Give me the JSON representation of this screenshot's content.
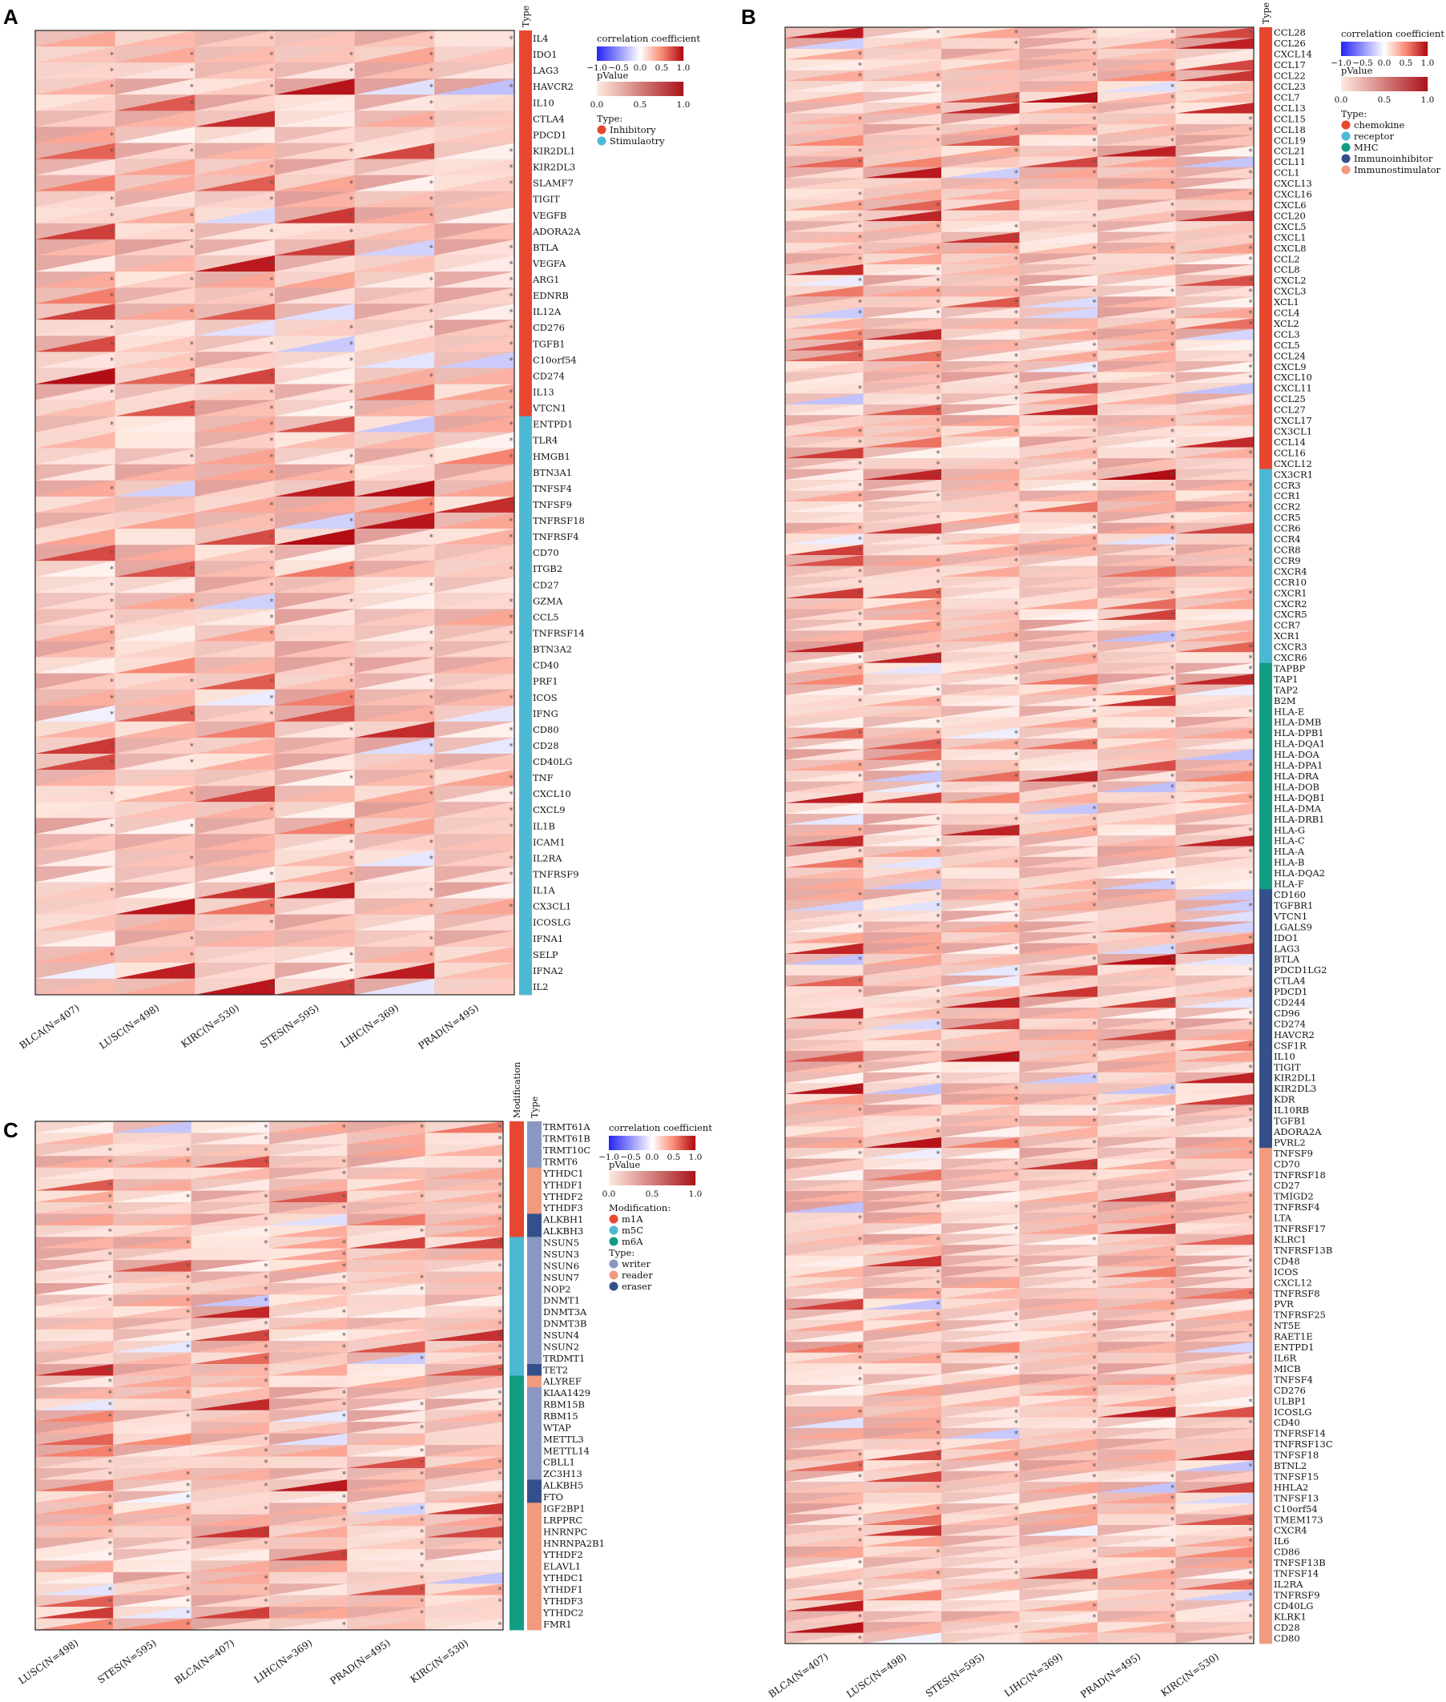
{
  "chart_data": [
    {
      "type": "heatmap",
      "panel": "A",
      "cohorts": [
        "BLCA(N=407)",
        "LUSC(N=498)",
        "KIRC(N=530)",
        "STES(N=595)",
        "LIHC(N=369)",
        "PRAD(N=495)"
      ],
      "genes": [
        "IL4",
        "IDO1",
        "LAG3",
        "HAVCR2",
        "IL10",
        "CTLA4",
        "PDCD1",
        "KIR2DL1",
        "KIR2DL3",
        "SLAMF7",
        "TIGIT",
        "VEGFB",
        "ADORA2A",
        "BTLA",
        "VEGFA",
        "ARG1",
        "EDNRB",
        "IL12A",
        "CD276",
        "TGFB1",
        "C10orf54",
        "CD274",
        "IL13",
        "VTCN1",
        "ENTPD1",
        "TLR4",
        "HMGB1",
        "BTN3A1",
        "TNFSF4",
        "TNFSF9",
        "TNFRSF18",
        "TNFRSF4",
        "CD70",
        "ITGB2",
        "CD27",
        "GZMA",
        "CCL5",
        "TNFRSF14",
        "BTN3A2",
        "CD40",
        "PRF1",
        "ICOS",
        "IFNG",
        "CD80",
        "CD28",
        "CD40LG",
        "TNF",
        "CXCL10",
        "CXCL9",
        "IL1B",
        "ICAM1",
        "IL2RA",
        "TNFRSF9",
        "IL1A",
        "CX3CL1",
        "ICOSLG",
        "IFNA1",
        "SELP",
        "IFNA2",
        "IL2"
      ],
      "type_track_title": "Type",
      "type_groups": [
        {
          "label": "Inhibitory",
          "color": "#e8472f",
          "count": 24
        },
        {
          "label": "Stimulaotry",
          "color": "#4db8d4",
          "count": 36
        }
      ],
      "legend": {
        "cor_title": "correlation coefficient",
        "cor_ticks": [
          "−1.0",
          "−0.5",
          "0.0",
          "0.5",
          "1.0"
        ],
        "p_title": "pValue",
        "p_ticks": [
          "0.0",
          "0.5",
          "1.0"
        ],
        "type_title": "Type:"
      },
      "annotation_symbol": "*"
    },
    {
      "type": "heatmap",
      "panel": "B",
      "cohorts": [
        "BLCA(N=407)",
        "LUSC(N=498)",
        "STES(N=595)",
        "LIHC(N=369)",
        "PRAD(N=495)",
        "KIRC(N=530)"
      ],
      "genes": [
        "CCL28",
        "CCL26",
        "CXCL14",
        "CCL17",
        "CCL22",
        "CCL23",
        "CCL7",
        "CCL13",
        "CCL15",
        "CCL18",
        "CCL19",
        "CCL21",
        "CCL11",
        "CCL1",
        "CXCL13",
        "CXCL16",
        "CXCL6",
        "CCL20",
        "CXCL5",
        "CXCL1",
        "CXCL8",
        "CCL2",
        "CCL8",
        "CXCL2",
        "CXCL3",
        "XCL1",
        "CCL4",
        "XCL2",
        "CCL3",
        "CCL5",
        "CCL24",
        "CXCL9",
        "CXCL10",
        "CXCL11",
        "CCL25",
        "CCL27",
        "CXCL17",
        "CX3CL1",
        "CCL14",
        "CCL16",
        "CXCL12",
        "CX3CR1",
        "CCR3",
        "CCR1",
        "CCR2",
        "CCR5",
        "CCR6",
        "CCR4",
        "CCR8",
        "CCR9",
        "CXCR4",
        "CCR10",
        "CXCR1",
        "CXCR2",
        "CXCR5",
        "CCR7",
        "XCR1",
        "CXCR3",
        "CXCR6",
        "TAPBP",
        "TAP1",
        "TAP2",
        "B2M",
        "HLA-E",
        "HLA-DMB",
        "HLA-DPB1",
        "HLA-DQA1",
        "HLA-DOA",
        "HLA-DPA1",
        "HLA-DRA",
        "HLA-DOB",
        "HLA-DQB1",
        "HLA-DMA",
        "HLA-DRB1",
        "HLA-G",
        "HLA-C",
        "HLA-A",
        "HLA-B",
        "HLA-DQA2",
        "HLA-F",
        "CD160",
        "TGFBR1",
        "VTCN1",
        "LGALS9",
        "IDO1",
        "LAG3",
        "BTLA",
        "PDCD1LG2",
        "CTLA4",
        "PDCD1",
        "CD244",
        "CD96",
        "CD274",
        "HAVCR2",
        "CSF1R",
        "IL10",
        "TIGIT",
        "KIR2DL1",
        "KIR2DL3",
        "KDR",
        "IL10RB",
        "TGFB1",
        "ADORA2A",
        "PVRL2",
        "TNFSF9",
        "CD70",
        "TNFRSF18",
        "CD27",
        "TMIGD2",
        "TNFRSF4",
        "LTA",
        "TNFRSF17",
        "KLRC1",
        "TNFRSF13B",
        "CD48",
        "ICOS",
        "CXCL12",
        "TNFRSF8",
        "PVR",
        "TNFRSF25",
        "NT5E",
        "RAET1E",
        "ENTPD1",
        "IL6R",
        "MICB",
        "TNFSF4",
        "CD276",
        "ULBP1",
        "ICOSLG",
        "CD40",
        "TNFRSF14",
        "TNFRSF13C",
        "TNFSF18",
        "BTNL2",
        "TNFSF15",
        "HHLA2",
        "TNFSF13",
        "C10orf54",
        "TMEM173",
        "CXCR4",
        "IL6",
        "CD86",
        "TNFSF13B",
        "TNFSF14",
        "IL2RA",
        "TNFRSF9",
        "CD40LG",
        "KLRK1",
        "CD28",
        "CD80"
      ],
      "type_track_title": "Type",
      "type_groups": [
        {
          "label": "chemokine",
          "color": "#e8472f",
          "count": 41
        },
        {
          "label": "receptor",
          "color": "#4db8d4",
          "count": 18
        },
        {
          "label": "MHC",
          "color": "#129c84",
          "count": 21
        },
        {
          "label": "Immunoinhibitor",
          "color": "#33508a",
          "count": 24
        },
        {
          "label": "Immunostimulator",
          "color": "#f19a7e",
          "count": 46
        }
      ],
      "legend": {
        "cor_title": "correlation coefficient",
        "cor_ticks": [
          "−1.0",
          "−0.5",
          "0.0",
          "0.5",
          "1.0"
        ],
        "p_title": "pValue",
        "p_ticks": [
          "0.0",
          "0.5",
          "1.0"
        ],
        "type_title": "Type:"
      },
      "annotation_symbol": "*"
    },
    {
      "type": "heatmap",
      "panel": "C",
      "cohorts": [
        "LUSC(N=498)",
        "STES(N=595)",
        "BLCA(N=407)",
        "LIHC(N=369)",
        "PRAD(N=495)",
        "KIRC(N=530)"
      ],
      "genes": [
        "TRMT61A",
        "TRMT61B",
        "TRMT10C",
        "TRMT6",
        "YTHDC1",
        "YTHDF1",
        "YTHDF2",
        "YTHDF3",
        "ALKBH1",
        "ALKBH3",
        "NSUN5",
        "NSUN3",
        "NSUN6",
        "NSUN7",
        "NOP2",
        "DNMT1",
        "DNMT3A",
        "DNMT3B",
        "NSUN4",
        "NSUN2",
        "TRDMT1",
        "TET2",
        "ALYREF",
        "KIAA1429",
        "RBM15B",
        "RBM15",
        "WTAP",
        "METTL3",
        "METTL14",
        "CBLL1",
        "ZC3H13",
        "ALKBH5",
        "FTO",
        "IGF2BP1",
        "LRPPRC",
        "HNRNPC",
        "HNRNPA2B1",
        "YTHDF2",
        "ELAVL1",
        "YTHDC1",
        "YTHDF1",
        "YTHDF3",
        "YTHDC2",
        "FMR1"
      ],
      "modification_track_title": "Modification",
      "type_track_title": "Type",
      "modification_groups": [
        {
          "label": "m1A",
          "color": "#e8472f",
          "count": 10
        },
        {
          "label": "m5C",
          "color": "#4db8d4",
          "count": 12
        },
        {
          "label": "m6A",
          "color": "#129c84",
          "count": 22
        }
      ],
      "type_colors": {
        "writer": "#8a97c1",
        "reader": "#f19a7e",
        "eraser": "#33508a"
      },
      "type_per_gene": [
        "writer",
        "writer",
        "writer",
        "writer",
        "reader",
        "reader",
        "reader",
        "reader",
        "eraser",
        "eraser",
        "writer",
        "writer",
        "writer",
        "writer",
        "writer",
        "writer",
        "writer",
        "writer",
        "writer",
        "writer",
        "writer",
        "eraser",
        "reader",
        "writer",
        "writer",
        "writer",
        "writer",
        "writer",
        "writer",
        "writer",
        "writer",
        "eraser",
        "eraser",
        "reader",
        "reader",
        "reader",
        "reader",
        "reader",
        "reader",
        "reader",
        "reader",
        "reader",
        "reader",
        "reader"
      ],
      "legend": {
        "cor_title": "correlation coefficient",
        "cor_ticks": [
          "−1.0",
          "−0.5",
          "0.0",
          "0.5",
          "1.0"
        ],
        "p_title": "pValue",
        "p_ticks": [
          "0.0",
          "0.5",
          "1.0"
        ],
        "mod_title": "Modification:",
        "type_title": "Type:",
        "type_labels": [
          "writer",
          "reader",
          "eraser"
        ]
      },
      "annotation_symbol": "*"
    }
  ],
  "panel_labels": [
    "A",
    "B",
    "C"
  ]
}
